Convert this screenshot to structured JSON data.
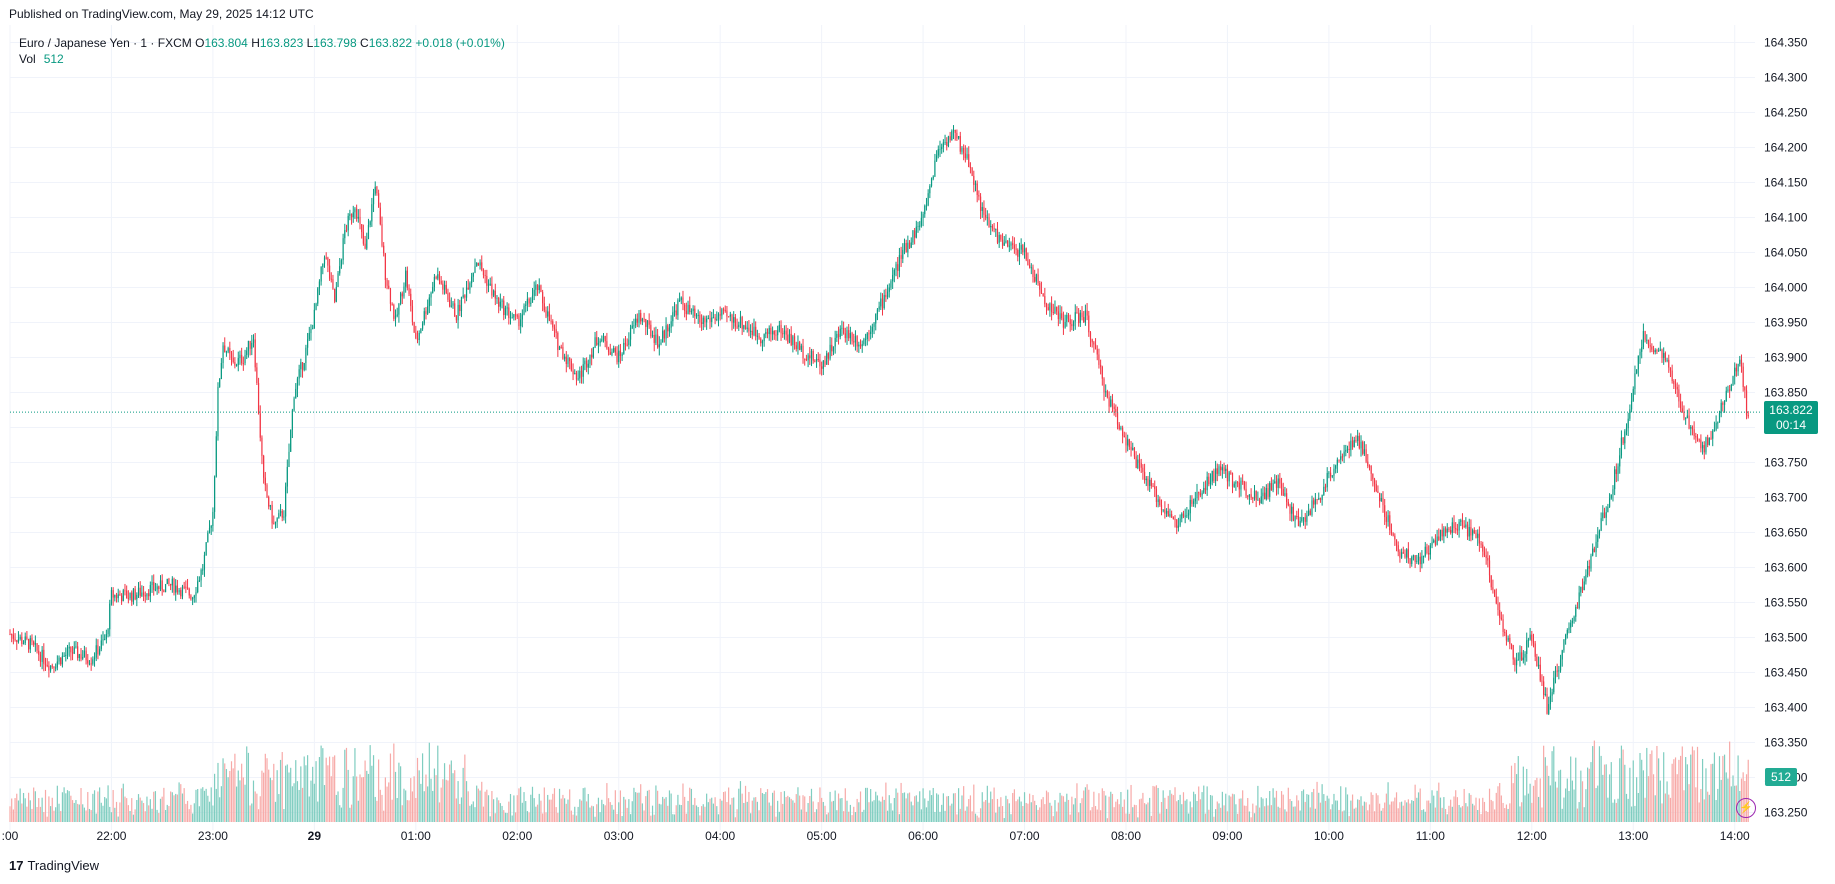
{
  "header": {
    "published": "Published on TradingView.com, May 29, 2025 14:12 UTC"
  },
  "legend": {
    "symbol": "Euro / Japanese Yen · 1 · FXCM",
    "o_label": "O",
    "o_value": "163.804",
    "h_label": "H",
    "h_value": "163.823",
    "l_label": "L",
    "l_value": "163.798",
    "c_label": "C",
    "c_value": "163.822",
    "change": "+0.018 (+0.01%)",
    "vol_label": "Vol",
    "vol_value": "512"
  },
  "price_tag": {
    "price": "163.822",
    "countdown": "00:14"
  },
  "vol_tag": "512",
  "footer": {
    "logo": "17",
    "brand": "TradingView"
  },
  "colors": {
    "up": "#089981",
    "down": "#f23645",
    "vol_up": "#7fcdc0",
    "vol_down": "#f7a9a7",
    "grid": "#f0f3fa"
  },
  "chart_data": {
    "type": "candlestick",
    "symbol": "EURJPY",
    "interval": "1",
    "y_ticks": [
      "164.350",
      "164.300",
      "164.250",
      "164.200",
      "164.150",
      "164.100",
      "164.050",
      "164.000",
      "163.950",
      "163.900",
      "163.850",
      "163.800",
      "163.750",
      "163.700",
      "163.650",
      "163.600",
      "163.550",
      "163.500",
      "163.450",
      "163.400",
      "163.350",
      "163.300",
      "163.250"
    ],
    "ylim": [
      163.225,
      164.375
    ],
    "x_ticks": [
      ":00",
      "22:00",
      "23:00",
      "29",
      "01:00",
      "02:00",
      "03:00",
      "04:00",
      "05:00",
      "06:00",
      "07:00",
      "08:00",
      "09:00",
      "10:00",
      "11:00",
      "12:00",
      "13:00",
      "14:00"
    ],
    "x_tick_hours": [
      -3,
      -2,
      -1,
      0,
      1,
      2,
      3,
      4,
      5,
      6,
      7,
      8,
      9,
      10,
      11,
      12,
      13,
      14
    ],
    "xlim_hours": [
      -3,
      14.2
    ],
    "last_price": 163.822,
    "price_path": [
      [
        -3.0,
        163.505
      ],
      [
        -2.8,
        163.49
      ],
      [
        -2.6,
        163.46
      ],
      [
        -2.4,
        163.48
      ],
      [
        -2.2,
        163.47
      ],
      [
        -2.05,
        163.5
      ],
      [
        -2.0,
        163.56
      ],
      [
        -1.8,
        163.56
      ],
      [
        -1.6,
        163.57
      ],
      [
        -1.4,
        163.575
      ],
      [
        -1.2,
        163.56
      ],
      [
        -1.1,
        163.6
      ],
      [
        -1.0,
        163.68
      ],
      [
        -0.95,
        163.85
      ],
      [
        -0.9,
        163.92
      ],
      [
        -0.8,
        163.89
      ],
      [
        -0.7,
        163.9
      ],
      [
        -0.6,
        163.93
      ],
      [
        -0.5,
        163.72
      ],
      [
        -0.4,
        163.66
      ],
      [
        -0.3,
        163.68
      ],
      [
        -0.2,
        163.85
      ],
      [
        -0.1,
        163.9
      ],
      [
        0.0,
        163.96
      ],
      [
        0.1,
        164.05
      ],
      [
        0.2,
        163.98
      ],
      [
        0.3,
        164.08
      ],
      [
        0.4,
        164.12
      ],
      [
        0.5,
        164.05
      ],
      [
        0.6,
        164.15
      ],
      [
        0.7,
        164.02
      ],
      [
        0.8,
        163.95
      ],
      [
        0.9,
        164.02
      ],
      [
        1.0,
        163.92
      ],
      [
        1.2,
        164.02
      ],
      [
        1.4,
        163.96
      ],
      [
        1.6,
        164.04
      ],
      [
        1.8,
        163.98
      ],
      [
        2.0,
        163.95
      ],
      [
        2.2,
        164.0
      ],
      [
        2.4,
        163.92
      ],
      [
        2.6,
        163.87
      ],
      [
        2.8,
        163.93
      ],
      [
        3.0,
        163.9
      ],
      [
        3.2,
        163.96
      ],
      [
        3.4,
        163.92
      ],
      [
        3.6,
        163.98
      ],
      [
        3.8,
        163.95
      ],
      [
        4.0,
        163.96
      ],
      [
        4.2,
        163.95
      ],
      [
        4.4,
        163.93
      ],
      [
        4.6,
        163.94
      ],
      [
        4.8,
        163.91
      ],
      [
        5.0,
        163.89
      ],
      [
        5.2,
        163.94
      ],
      [
        5.4,
        163.92
      ],
      [
        5.6,
        163.98
      ],
      [
        5.8,
        164.05
      ],
      [
        6.0,
        164.1
      ],
      [
        6.15,
        164.2
      ],
      [
        6.3,
        164.22
      ],
      [
        6.45,
        164.18
      ],
      [
        6.6,
        164.1
      ],
      [
        6.8,
        164.06
      ],
      [
        7.0,
        164.05
      ],
      [
        7.2,
        163.98
      ],
      [
        7.4,
        163.95
      ],
      [
        7.6,
        163.96
      ],
      [
        7.8,
        163.85
      ],
      [
        7.95,
        163.8
      ],
      [
        8.1,
        163.75
      ],
      [
        8.3,
        163.7
      ],
      [
        8.5,
        163.66
      ],
      [
        8.7,
        163.7
      ],
      [
        8.9,
        163.74
      ],
      [
        9.1,
        163.72
      ],
      [
        9.3,
        163.7
      ],
      [
        9.5,
        163.72
      ],
      [
        9.7,
        163.66
      ],
      [
        9.9,
        163.7
      ],
      [
        10.1,
        163.76
      ],
      [
        10.3,
        163.78
      ],
      [
        10.5,
        163.7
      ],
      [
        10.7,
        163.62
      ],
      [
        10.9,
        163.61
      ],
      [
        11.1,
        163.65
      ],
      [
        11.3,
        163.66
      ],
      [
        11.5,
        163.64
      ],
      [
        11.7,
        163.52
      ],
      [
        11.85,
        163.46
      ],
      [
        12.0,
        163.5
      ],
      [
        12.15,
        163.4
      ],
      [
        12.3,
        163.48
      ],
      [
        12.45,
        163.55
      ],
      [
        12.6,
        163.62
      ],
      [
        12.8,
        163.72
      ],
      [
        12.95,
        163.82
      ],
      [
        13.1,
        163.93
      ],
      [
        13.3,
        163.9
      ],
      [
        13.5,
        163.82
      ],
      [
        13.7,
        163.77
      ],
      [
        13.9,
        163.84
      ],
      [
        14.05,
        163.9
      ],
      [
        14.12,
        163.822
      ]
    ]
  }
}
